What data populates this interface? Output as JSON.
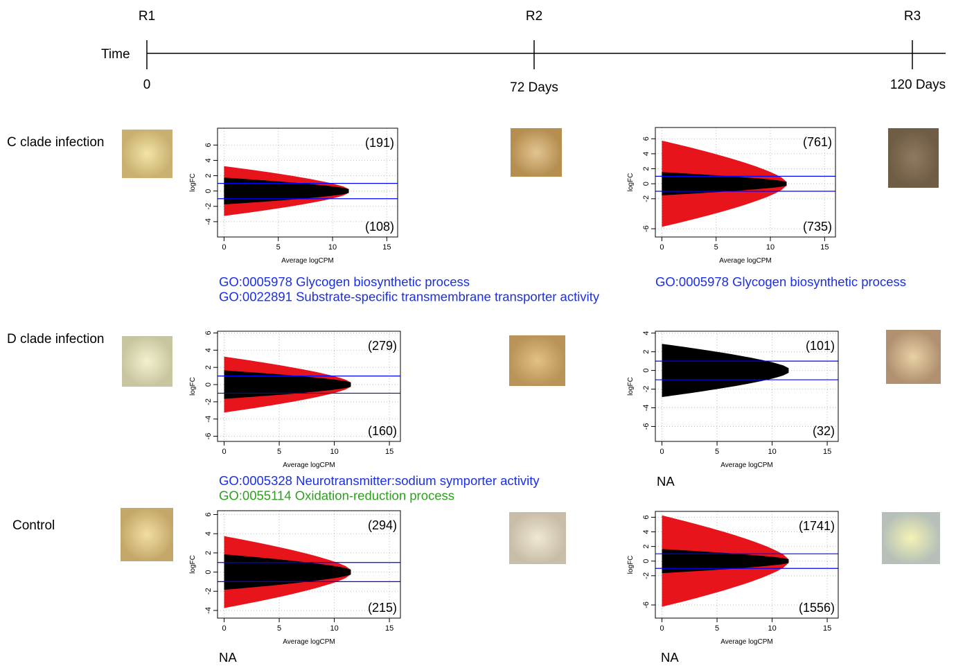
{
  "timeline": {
    "axis_label": "Time",
    "points": [
      {
        "label": "R1",
        "day": "0"
      },
      {
        "label": "R2",
        "day": "72 Days"
      },
      {
        "label": "R3",
        "day": "120 Days"
      }
    ]
  },
  "rows": [
    {
      "label": "C clade infection",
      "charts": [
        {
          "type": "scatter",
          "x_label": "Average logCPM",
          "y_label": "logFC",
          "xlim": [
            -0.6,
            16
          ],
          "xticks": [
            0,
            5,
            10,
            15
          ],
          "ylim": [
            -6,
            8.2
          ],
          "yticks": [
            -4,
            -2,
            0,
            2,
            4,
            6
          ],
          "hlines": [
            1,
            -1
          ],
          "hline_color": "#0000ff",
          "up_count": "(191)",
          "down_count": "(108)"
        },
        {
          "type": "scatter",
          "x_label": "Average logCPM",
          "y_label": "logFC",
          "xlim": [
            -0.6,
            16
          ],
          "xticks": [
            0,
            5,
            10,
            15
          ],
          "ylim": [
            -7.1,
            7.5
          ],
          "yticks": [
            -6,
            -2,
            0,
            2,
            4,
            6
          ],
          "hlines": [
            1,
            -1
          ],
          "hline_color": "#0000ff",
          "up_count": "(761)",
          "down_count": "(735)"
        }
      ],
      "go_terms": [
        [
          {
            "text": "GO:0005978 Glycogen biosynthetic process",
            "color": "#1a2fe6"
          },
          {
            "text": "GO:0022891 Substrate-specific transmembrane transporter activity",
            "color": "#1a2fe6"
          }
        ],
        [
          {
            "text": "GO:0005978 Glycogen biosynthetic process",
            "color": "#1a2fe6"
          }
        ]
      ]
    },
    {
      "label": "D clade infection",
      "charts": [
        {
          "type": "scatter",
          "x_label": "Average logCPM",
          "y_label": "logFC",
          "xlim": [
            -0.6,
            16
          ],
          "xticks": [
            0,
            5,
            10,
            15
          ],
          "ylim": [
            -6.6,
            6.2
          ],
          "yticks": [
            -6,
            -4,
            -2,
            0,
            2,
            4,
            6
          ],
          "hlines": [
            1,
            -1
          ],
          "hline_color": "#0000ff",
          "up_count": "(279)",
          "down_count": "(160)"
        },
        {
          "type": "scatter",
          "x_label": "Average logCPM",
          "y_label": "logFC",
          "xlim": [
            -0.6,
            16
          ],
          "xticks": [
            0,
            5,
            10,
            15
          ],
          "ylim": [
            -7.6,
            4.2
          ],
          "yticks": [
            -6,
            -4,
            -2,
            0,
            2,
            4
          ],
          "hlines": [
            1,
            -1
          ],
          "hline_color": "#0000ff",
          "up_count": "(101)",
          "down_count": "(32)"
        }
      ],
      "go_terms": [
        [
          {
            "text": "GO:0005328 Neurotransmitter:sodium symporter activity",
            "color": "#1a2fe6"
          },
          {
            "text": "GO:0055114 Oxidation-reduction process",
            "color": "#2ca01c"
          }
        ],
        [
          {
            "text": "NA",
            "color": "#000000"
          }
        ]
      ]
    },
    {
      "label": "Control",
      "charts": [
        {
          "type": "scatter",
          "x_label": "Average logCPM",
          "y_label": "logFC",
          "xlim": [
            -0.6,
            16
          ],
          "xticks": [
            0,
            5,
            10,
            15
          ],
          "ylim": [
            -4.8,
            6.4
          ],
          "yticks": [
            -4,
            -2,
            0,
            2,
            4,
            6
          ],
          "hlines": [
            1,
            -1
          ],
          "hline_color": "#0000ff",
          "up_count": "(294)",
          "down_count": "(215)"
        },
        {
          "type": "scatter",
          "x_label": "Average logCPM",
          "y_label": "logFC",
          "xlim": [
            -0.6,
            16
          ],
          "xticks": [
            0,
            5,
            10,
            15
          ],
          "ylim": [
            -7.8,
            6.8
          ],
          "yticks": [
            -6,
            -2,
            0,
            2,
            4,
            6
          ],
          "hlines": [
            1,
            -1
          ],
          "hline_color": "#0000ff",
          "up_count": "(1741)",
          "down_count": "(1556)"
        }
      ],
      "go_terms": [
        [
          {
            "text": "NA",
            "color": "#000000"
          }
        ],
        [
          {
            "text": "NA",
            "color": "#000000"
          }
        ]
      ]
    }
  ]
}
